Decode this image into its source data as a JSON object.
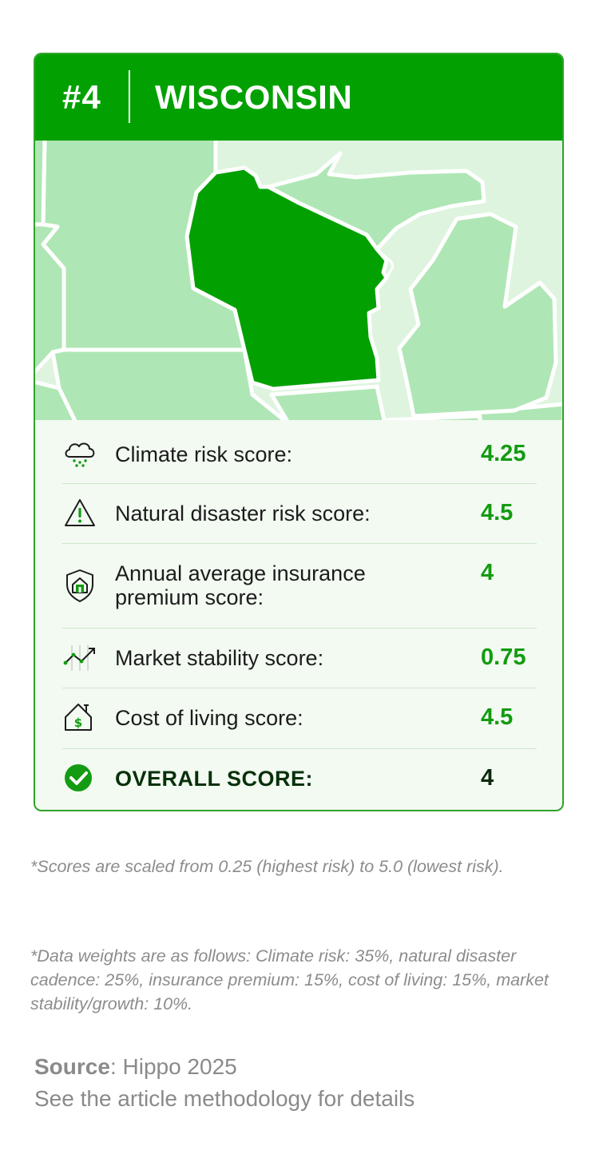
{
  "header": {
    "rank": "#4",
    "state": "WISCONSIN"
  },
  "colors": {
    "brand_green": "#02a101",
    "map_light": "#afe6b5",
    "map_bg": "#def4df",
    "value_green": "#139b11",
    "overall_text": "#07310a"
  },
  "scores": [
    {
      "icon": "cloud-rain-icon",
      "label": "Climate risk score:",
      "value": "4.25"
    },
    {
      "icon": "warning-triangle-icon",
      "label": "Natural disaster risk score:",
      "value": "4.5"
    },
    {
      "icon": "shield-house-icon",
      "label": "Annual average insurance premium score:",
      "value": "4"
    },
    {
      "icon": "trend-chart-icon",
      "label": "Market stability score:",
      "value": "0.75"
    },
    {
      "icon": "house-dollar-icon",
      "label": "Cost of living score:",
      "value": "4.5"
    }
  ],
  "overall": {
    "icon": "check-circle-icon",
    "label": "OVERALL SCORE:",
    "value": "4"
  },
  "notes": {
    "scale": "*Scores are scaled from 0.25 (highest risk) to 5.0 (lowest risk).",
    "weights": "*Data weights are as follows: Climate risk: 35%, natural disaster cadence: 25%, insurance premium: 15%, cost of living: 15%, market stability/growth: 10%."
  },
  "source": {
    "bold": "Source",
    "text": ": Hippo 2025",
    "details": "See the article methodology for details"
  }
}
